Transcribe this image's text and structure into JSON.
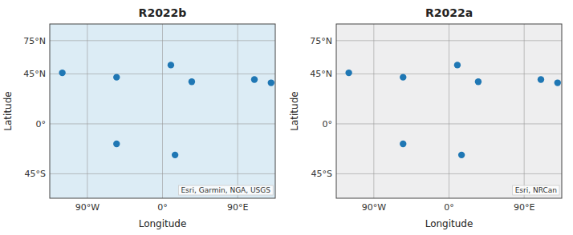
{
  "chart_data": [
    {
      "type": "scatter",
      "title": "R2022b",
      "xlabel": "Longitude",
      "ylabel": "Latitude",
      "x": [
        -120,
        -55,
        10,
        35,
        110,
        130,
        -55,
        15
      ],
      "values": [
        46,
        42,
        53,
        38,
        40,
        37,
        -18,
        -28
      ],
      "color": "#1f77b4",
      "xlim": [
        -135,
        135
      ],
      "ylim": [
        -67,
        90
      ],
      "xticks": [
        {
          "value": -90,
          "label": "90°W"
        },
        {
          "value": 0,
          "label": "0°"
        },
        {
          "value": 90,
          "label": "90°E"
        }
      ],
      "yticks": [
        {
          "value": 75,
          "label": "75°N"
        },
        {
          "value": 45,
          "label": "45°N"
        },
        {
          "value": 0,
          "label": "0°"
        },
        {
          "value": -45,
          "label": "45°S"
        }
      ],
      "grid": true,
      "annotations": [
        "Esri, Garmin, NGA, USGS"
      ]
    },
    {
      "type": "scatter",
      "title": "R2022a",
      "xlabel": "Longitude",
      "ylabel": "Latitude",
      "x": [
        -120,
        -55,
        10,
        35,
        110,
        130,
        -55,
        15
      ],
      "values": [
        46,
        42,
        53,
        38,
        40,
        37,
        -18,
        -28
      ],
      "color": "#1f77b4",
      "xlim": [
        -135,
        135
      ],
      "ylim": [
        -67,
        90
      ],
      "xticks": [
        {
          "value": -90,
          "label": "90°W"
        },
        {
          "value": 0,
          "label": "0°"
        },
        {
          "value": 90,
          "label": "90°E"
        }
      ],
      "yticks": [
        {
          "value": 75,
          "label": "75°N"
        },
        {
          "value": 45,
          "label": "45°N"
        },
        {
          "value": 0,
          "label": "0°"
        },
        {
          "value": -45,
          "label": "45°S"
        }
      ],
      "grid": true,
      "annotations": [
        "Esri, NRCan"
      ]
    }
  ]
}
